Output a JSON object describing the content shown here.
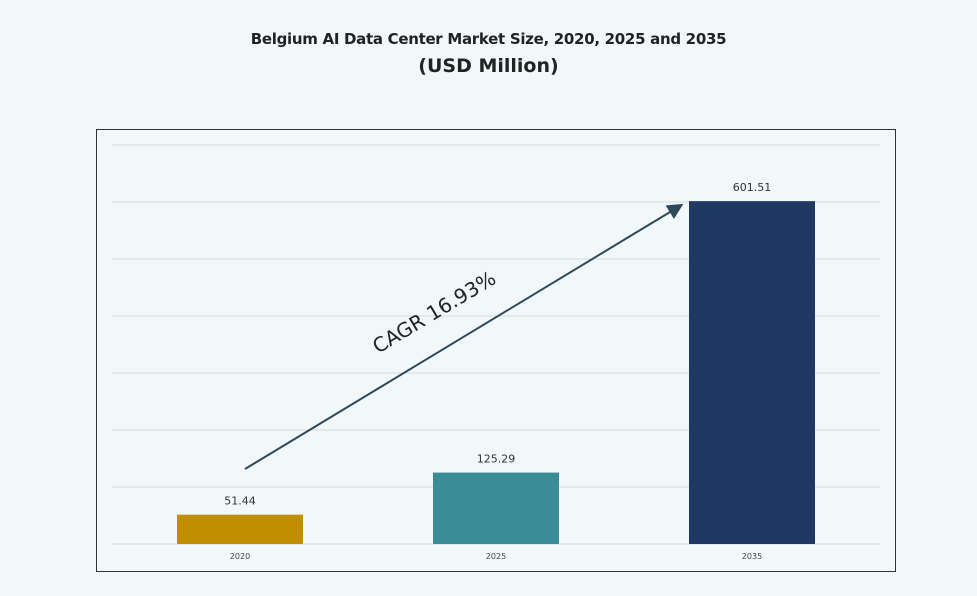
{
  "chart_data": {
    "type": "bar",
    "title": "Belgium AI Data Center Market Size, 2020, 2025 and 2035",
    "subtitle": "(USD Million)",
    "categories": [
      "2020",
      "2025",
      "2035"
    ],
    "values": [
      51.44,
      125.29,
      601.51
    ],
    "data_labels": [
      "51.44",
      "125.29",
      "601.51"
    ],
    "colors": [
      "#C08F00",
      "#3A8C96",
      "#203864"
    ],
    "ylim": [
      0,
      700
    ],
    "grid": true,
    "annotation": {
      "text": "CAGR 16.93%",
      "arrow_color": "#2E4A5A"
    },
    "xlabel": "",
    "ylabel": ""
  }
}
